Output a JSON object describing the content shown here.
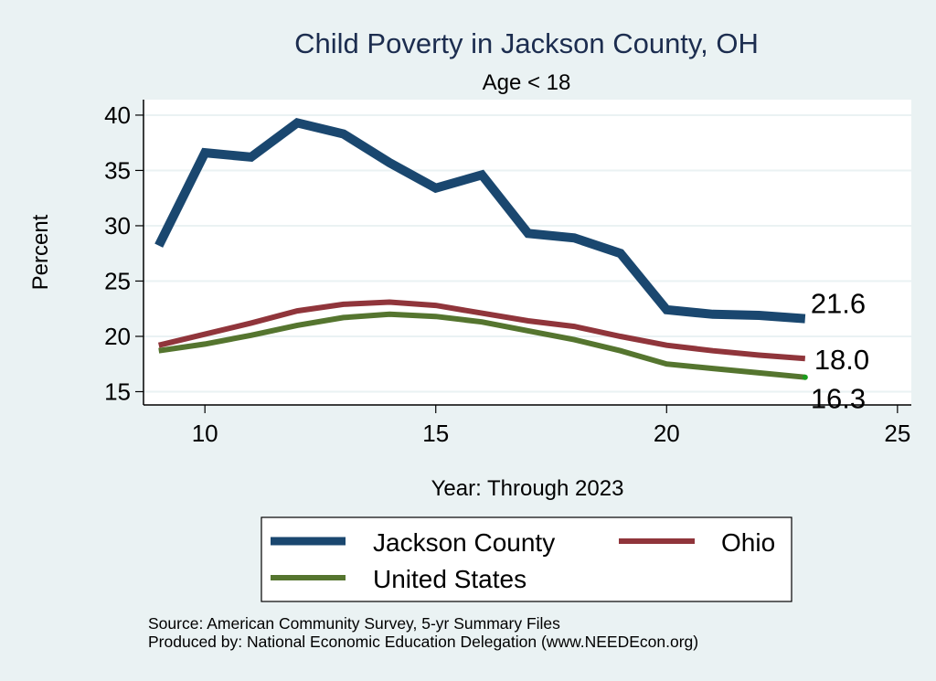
{
  "chart_data": {
    "type": "line",
    "title": "Child Poverty in Jackson County, OH",
    "subtitle": "Age < 18",
    "xlabel": "Year: Through 2023",
    "ylabel": "Percent",
    "xlim": [
      8.67,
      25.3
    ],
    "ylim": [
      13.8,
      41.4
    ],
    "xticks": [
      10,
      15,
      20,
      25
    ],
    "yticks": [
      15,
      20,
      25,
      30,
      35,
      40
    ],
    "grid": true,
    "legend_position": "bottom",
    "x": [
      9,
      10,
      11,
      12,
      13,
      14,
      15,
      16,
      17,
      18,
      19,
      20,
      21,
      22,
      23
    ],
    "series": [
      {
        "name": "Jackson County",
        "color": "#1a476f",
        "values": [
          28.2,
          36.6,
          36.2,
          39.3,
          38.3,
          35.7,
          33.4,
          34.6,
          29.3,
          28.9,
          27.5,
          22.4,
          22.0,
          21.9,
          21.6
        ],
        "end_label": "21.6"
      },
      {
        "name": "Ohio",
        "color": "#90353b",
        "values": [
          19.2,
          20.2,
          21.2,
          22.3,
          22.9,
          23.1,
          22.8,
          22.1,
          21.4,
          20.9,
          20.0,
          19.2,
          18.7,
          18.3,
          18.0
        ],
        "end_label": "18.0"
      },
      {
        "name": "United States",
        "color": "#55752f",
        "values": [
          18.7,
          19.3,
          20.1,
          21.0,
          21.7,
          22.0,
          21.8,
          21.3,
          20.5,
          19.7,
          18.7,
          17.5,
          17.1,
          16.7,
          16.3
        ],
        "end_label": "16.3"
      }
    ],
    "notes": [
      "Source: American Community Survey, 5-yr Summary Files",
      "Produced by: National Economic Education Delegation (www.NEEDEcon.org)"
    ]
  },
  "colors": {
    "background": "#eaf2f3",
    "plot_background": "#ffffff",
    "gridline": "#eaf2f3",
    "title": "#1c2d4f",
    "end_marker": "#1a9c1a"
  }
}
